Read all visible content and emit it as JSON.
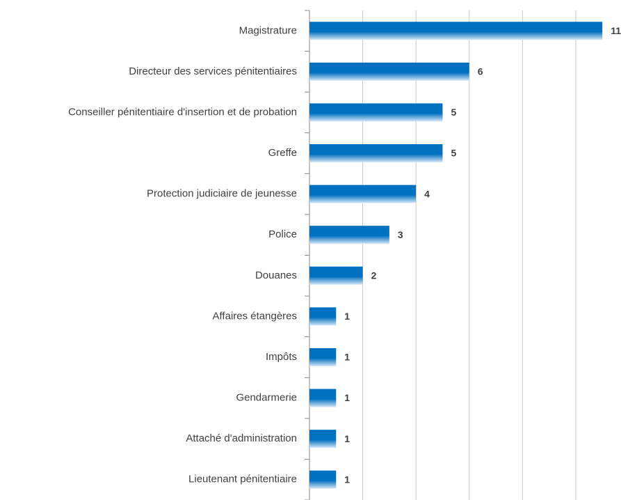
{
  "chart_data": {
    "type": "hbar",
    "categories": [
      "Magistrature",
      "Directeur des services pénitentiaires",
      "Conseiller pénitentiaire d'insertion et de probation",
      "Greffe",
      "Protection judiciaire de jeunesse",
      "Police",
      "Douanes",
      "Affaires étangères",
      "Impôts",
      "Gendarmerie",
      "Attaché d'administration",
      "Lieutenant pénitentiaire"
    ],
    "values": [
      11,
      6,
      5,
      5,
      4,
      3,
      2,
      1,
      1,
      1,
      1,
      1
    ],
    "color": "#0070c0",
    "xlim": [
      0,
      11.7
    ],
    "xticks": [
      0,
      2,
      4,
      6,
      8,
      10
    ],
    "grid": true
  }
}
